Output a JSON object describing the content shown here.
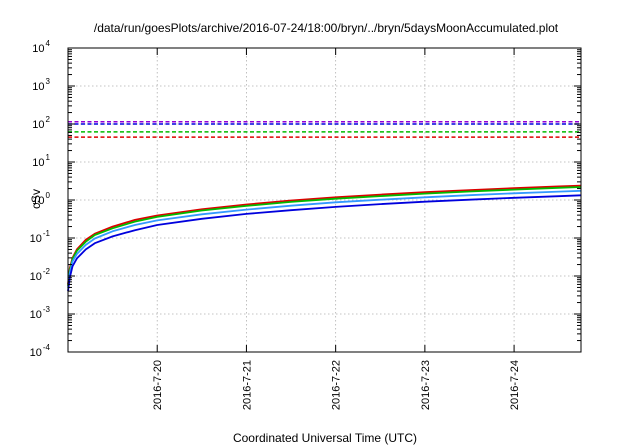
{
  "chart_data": {
    "type": "line",
    "title": "/data/run/goesPlots/archive/2016-07-24/18:00/bryn/../bryn/5daysMoonAccumulated.plot",
    "xlabel": "Coordinated Universal Time (UTC)",
    "ylabel": "cSv",
    "y_scale": "log",
    "ylim": [
      0.0001,
      10000
    ],
    "xlim_days": [
      0,
      5.75
    ],
    "x_ticks": [
      {
        "label": "2016-7-20",
        "day": 1
      },
      {
        "label": "2016-7-21",
        "day": 2
      },
      {
        "label": "2016-7-22",
        "day": 3
      },
      {
        "label": "2016-7-23",
        "day": 4
      },
      {
        "label": "2016-7-24",
        "day": 5
      }
    ],
    "y_ticks": [
      {
        "base": "10",
        "exp": "-4",
        "value": 0.0001
      },
      {
        "base": "10",
        "exp": "-3",
        "value": 0.001
      },
      {
        "base": "10",
        "exp": "-2",
        "value": 0.01
      },
      {
        "base": "10",
        "exp": "-1",
        "value": 0.1
      },
      {
        "base": "10",
        "exp": "0",
        "value": 1
      },
      {
        "base": "10",
        "exp": "1",
        "value": 10
      },
      {
        "base": "10",
        "exp": "2",
        "value": 100
      },
      {
        "base": "10",
        "exp": "3",
        "value": 1000
      },
      {
        "base": "10",
        "exp": "4",
        "value": 10000
      }
    ],
    "grid": true,
    "x_days": [
      0,
      0.02,
      0.05,
      0.1,
      0.2,
      0.3,
      0.5,
      0.75,
      1,
      1.5,
      2,
      2.5,
      3,
      3.5,
      4,
      4.5,
      5,
      5.5,
      5.75
    ],
    "series": [
      {
        "color": "#dd0000",
        "style": "solid",
        "values": [
          0.006,
          0.016,
          0.03,
          0.05,
          0.09,
          0.13,
          0.2,
          0.3,
          0.39,
          0.57,
          0.76,
          0.97,
          1.18,
          1.39,
          1.6,
          1.82,
          2.05,
          2.28,
          2.4
        ]
      },
      {
        "color": "#00bb00",
        "style": "solid",
        "values": [
          0.0055,
          0.014,
          0.028,
          0.046,
          0.08,
          0.12,
          0.18,
          0.27,
          0.36,
          0.53,
          0.7,
          0.89,
          1.08,
          1.27,
          1.47,
          1.67,
          1.88,
          2.09,
          2.2
        ]
      },
      {
        "color": "#3399ff",
        "style": "solid",
        "values": [
          0.0048,
          0.012,
          0.024,
          0.038,
          0.066,
          0.097,
          0.15,
          0.22,
          0.29,
          0.42,
          0.56,
          0.71,
          0.87,
          1.02,
          1.18,
          1.34,
          1.5,
          1.66,
          1.75
        ]
      },
      {
        "color": "#0000dd",
        "style": "solid",
        "values": [
          0.004,
          0.009,
          0.018,
          0.029,
          0.05,
          0.073,
          0.11,
          0.16,
          0.22,
          0.32,
          0.43,
          0.54,
          0.66,
          0.78,
          0.9,
          1.02,
          1.14,
          1.26,
          1.33
        ]
      },
      {
        "color": "#9400d3",
        "style": "dashed",
        "constant": 115
      },
      {
        "color": "#0000dd",
        "style": "dashed",
        "constant": 100
      },
      {
        "color": "#00bb00",
        "style": "dashed",
        "constant": 62
      },
      {
        "color": "#dd0000",
        "style": "dashed",
        "constant": 45
      }
    ]
  }
}
